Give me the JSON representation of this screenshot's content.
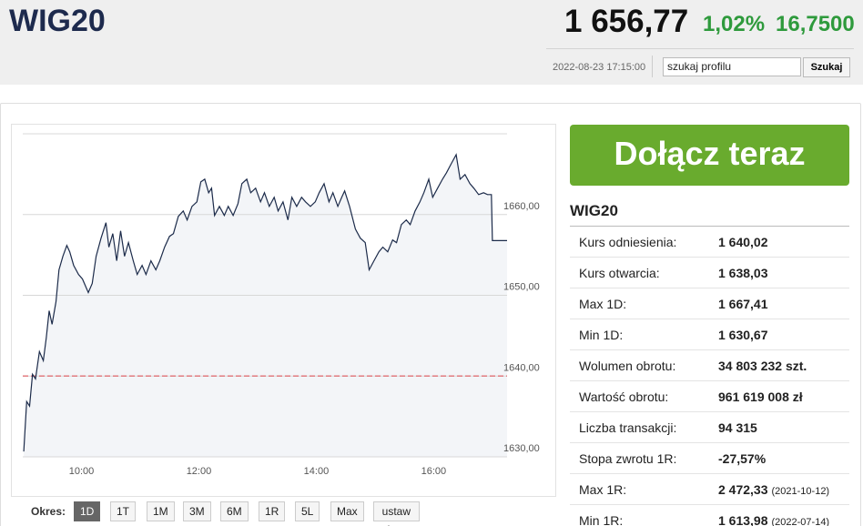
{
  "header": {
    "title": "WIG20",
    "price": "1 656,77",
    "change_pct": "1,02%",
    "change": "16,7500",
    "timestamp": "2022-08-23 17:15:00",
    "search_placeholder": "szukaj profilu",
    "search_button": "Szukaj"
  },
  "chart_data": {
    "type": "line",
    "x": [
      "09:01",
      "09:04",
      "09:07",
      "09:10",
      "09:13",
      "09:17",
      "09:21",
      "09:24",
      "09:27",
      "09:30",
      "09:34",
      "09:37",
      "09:41",
      "09:45",
      "09:48",
      "09:52",
      "09:57",
      "10:01",
      "10:07",
      "10:11",
      "10:15",
      "10:20",
      "10:25",
      "10:28",
      "10:32",
      "10:36",
      "10:40",
      "10:44",
      "10:48",
      "10:53",
      "10:57",
      "11:02",
      "11:06",
      "11:11",
      "11:16",
      "11:20",
      "11:25",
      "11:30",
      "11:34",
      "11:39",
      "11:44",
      "11:48",
      "11:53",
      "11:58",
      "12:02",
      "12:06",
      "12:10",
      "12:13",
      "12:16",
      "12:21",
      "12:26",
      "12:30",
      "12:35",
      "12:40",
      "12:44",
      "12:49",
      "12:53",
      "12:58",
      "13:03",
      "13:07",
      "13:12",
      "13:17",
      "13:21",
      "13:26",
      "13:31",
      "13:35",
      "13:40",
      "13:45",
      "13:49",
      "13:54",
      "13:59",
      "14:03",
      "14:08",
      "14:13",
      "14:17",
      "14:22",
      "14:26",
      "14:29",
      "14:34",
      "14:40",
      "14:45",
      "14:50",
      "14:54",
      "14:59",
      "15:04",
      "15:08",
      "15:13",
      "15:18",
      "15:22",
      "15:27",
      "15:32",
      "15:36",
      "15:41",
      "15:46",
      "15:50",
      "15:55",
      "15:59",
      "16:04",
      "16:09",
      "16:13",
      "16:18",
      "16:23",
      "16:27",
      "16:32",
      "16:37",
      "16:41",
      "16:46",
      "16:51",
      "16:55",
      "16:59",
      "17:00",
      "17:15"
    ],
    "values": [
      1630.67,
      1636.85,
      1636.29,
      1640.22,
      1639.66,
      1643.03,
      1641.91,
      1644.72,
      1648.09,
      1646.4,
      1649.21,
      1653.15,
      1654.83,
      1656.18,
      1655.39,
      1653.71,
      1652.58,
      1652.02,
      1650.34,
      1651.46,
      1654.83,
      1657.08,
      1658.99,
      1655.96,
      1657.64,
      1654.27,
      1657.98,
      1654.83,
      1656.52,
      1654.27,
      1652.58,
      1653.71,
      1652.58,
      1654.27,
      1653.15,
      1654.27,
      1655.96,
      1657.3,
      1657.64,
      1659.78,
      1660.45,
      1659.33,
      1661.01,
      1661.57,
      1664.04,
      1664.38,
      1662.7,
      1663.26,
      1659.89,
      1661.01,
      1659.89,
      1661.01,
      1659.89,
      1661.35,
      1663.82,
      1664.38,
      1662.7,
      1663.26,
      1661.57,
      1662.7,
      1661.01,
      1662.13,
      1660.45,
      1661.57,
      1659.33,
      1662.13,
      1661.01,
      1662.13,
      1661.57,
      1661.01,
      1661.57,
      1662.7,
      1663.82,
      1661.57,
      1662.7,
      1661.01,
      1662.13,
      1662.92,
      1661.01,
      1658.2,
      1657.08,
      1656.52,
      1653.15,
      1654.27,
      1655.39,
      1655.96,
      1655.39,
      1656.85,
      1656.52,
      1658.76,
      1659.33,
      1658.76,
      1660.45,
      1661.57,
      1662.7,
      1664.38,
      1662.13,
      1663.26,
      1664.38,
      1665.17,
      1666.29,
      1667.41,
      1664.38,
      1664.94,
      1663.82,
      1663.26,
      1662.47,
      1662.7,
      1662.47,
      1662.47,
      1656.77,
      1656.77
    ],
    "color": "#1c2b4a",
    "fill_color": "#f3f5f8",
    "reference_line": 1640.02,
    "reference_color": "#e0474c",
    "xlim": [
      "09:00",
      "17:15"
    ],
    "xticks": [
      "10:00",
      "12:00",
      "14:00",
      "16:00"
    ],
    "ylim": [
      1630,
      1670
    ],
    "yticks": [
      {
        "value": 1630,
        "label": "1630,00"
      },
      {
        "value": 1640,
        "label": "1640,00"
      },
      {
        "value": 1650,
        "label": "1650,00"
      },
      {
        "value": 1660,
        "label": "1660,00"
      }
    ],
    "grid": true
  },
  "period": {
    "label": "Okres:",
    "buttons": [
      "1D",
      "1T",
      "1M",
      "3M",
      "6M",
      "1R",
      "5L",
      "Max",
      "ustaw własny"
    ],
    "selected": 0
  },
  "sidebar": {
    "cta": "Dołącz teraz",
    "title": "WIG20",
    "rows": [
      [
        "Kurs odniesienia:",
        "1 640,02"
      ],
      [
        "Kurs otwarcia:",
        "1 638,03"
      ],
      [
        "Max 1D:",
        "1 667,41"
      ],
      [
        "Min 1D:",
        "1 630,67"
      ],
      [
        "Wolumen obrotu:",
        "34 803 232 szt."
      ],
      [
        "Wartość obrotu:",
        "961 619 008 zł"
      ],
      [
        "Liczba transakcji:",
        "94 315"
      ],
      [
        "Stopa zwrotu 1R:",
        "-27,57%"
      ],
      [
        "Max 1R:",
        "2 472,33",
        "(2021-10-12)"
      ],
      [
        "Min 1R:",
        "1 613,98",
        "(2022-07-14)"
      ]
    ]
  }
}
